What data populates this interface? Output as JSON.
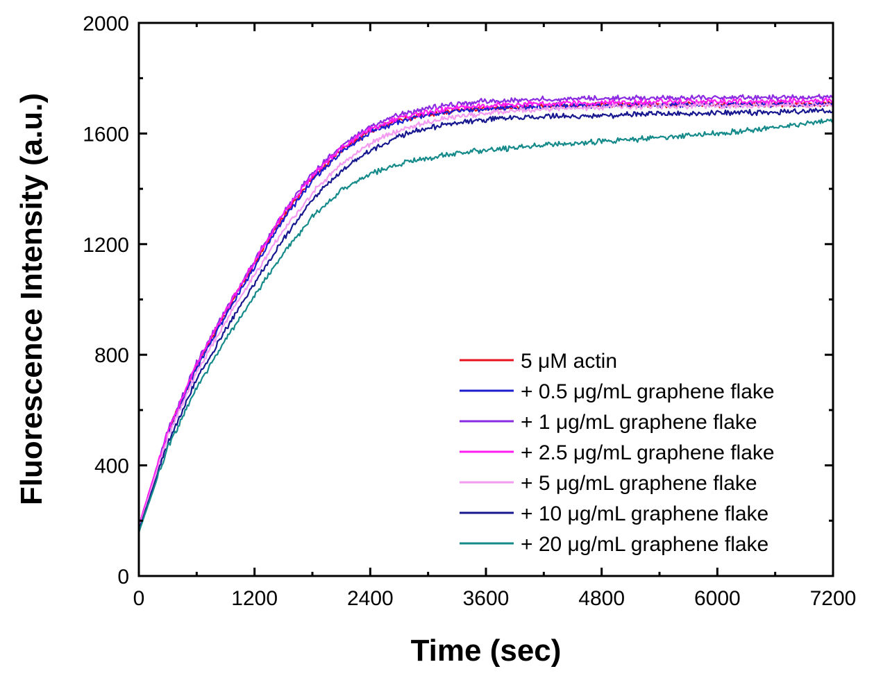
{
  "chart_data": {
    "type": "line",
    "title": "",
    "xlabel": "Time (sec)",
    "ylabel": "Fluorescence Intensity (a.u.)",
    "xlim": [
      0,
      7200
    ],
    "ylim": [
      0,
      2000
    ],
    "xticks": [
      "0",
      "1200",
      "2400",
      "3600",
      "4800",
      "6000",
      "7200"
    ],
    "yticks": [
      "0",
      "400",
      "800",
      "1200",
      "1600",
      "2000"
    ],
    "grid": false,
    "legend_position": "bottom-right",
    "x": [
      0,
      300,
      600,
      900,
      1200,
      1500,
      1800,
      2100,
      2400,
      2700,
      3000,
      3300,
      3600,
      3900,
      4200,
      4500,
      4800,
      5100,
      5400,
      5700,
      6000,
      6300,
      6600,
      6900,
      7200
    ],
    "series": [
      {
        "name": "5 μM actin",
        "color": "#e8121f",
        "values": [
          180,
          520,
          760,
          950,
          1130,
          1300,
          1440,
          1540,
          1610,
          1650,
          1670,
          1685,
          1692,
          1697,
          1700,
          1702,
          1703,
          1704,
          1704,
          1705,
          1705,
          1706,
          1706,
          1706,
          1707
        ]
      },
      {
        "name": "+ 0.5 μg/mL graphene flake",
        "color": "#1c1ccf",
        "values": [
          175,
          510,
          750,
          940,
          1120,
          1290,
          1430,
          1535,
          1605,
          1645,
          1668,
          1682,
          1690,
          1695,
          1698,
          1700,
          1702,
          1703,
          1704,
          1705,
          1705,
          1706,
          1706,
          1706,
          1707
        ]
      },
      {
        "name": "+ 1 μg/mL graphene flake",
        "color": "#8a2be2",
        "values": [
          180,
          525,
          770,
          960,
          1140,
          1315,
          1455,
          1555,
          1625,
          1668,
          1692,
          1708,
          1716,
          1720,
          1723,
          1725,
          1727,
          1728,
          1729,
          1730,
          1730,
          1731,
          1731,
          1732,
          1732
        ]
      },
      {
        "name": "+ 2.5 μg/mL graphene flake",
        "color": "#ff1cf0",
        "values": [
          182,
          522,
          768,
          958,
          1138,
          1312,
          1450,
          1548,
          1615,
          1655,
          1678,
          1692,
          1700,
          1705,
          1708,
          1710,
          1712,
          1713,
          1714,
          1715,
          1715,
          1716,
          1716,
          1717,
          1717
        ]
      },
      {
        "name": "+ 5 μg/mL graphene flake",
        "color": "#f49af0",
        "values": [
          170,
          505,
          735,
          920,
          1090,
          1250,
          1385,
          1490,
          1565,
          1612,
          1642,
          1662,
          1675,
          1683,
          1688,
          1692,
          1695,
          1697,
          1699,
          1700,
          1701,
          1702,
          1702,
          1703,
          1703
        ]
      },
      {
        "name": "+ 10 μg/mL graphene flake",
        "color": "#17178f",
        "values": [
          165,
          480,
          710,
          890,
          1060,
          1220,
          1360,
          1465,
          1540,
          1590,
          1620,
          1640,
          1650,
          1656,
          1660,
          1663,
          1666,
          1668,
          1670,
          1672,
          1674,
          1676,
          1678,
          1680,
          1682
        ]
      },
      {
        "name": "+ 20 μg/mL graphene flake",
        "color": "#158a8a",
        "values": [
          158,
          465,
          680,
          855,
          1015,
          1165,
          1300,
          1395,
          1455,
          1490,
          1512,
          1528,
          1540,
          1550,
          1558,
          1565,
          1572,
          1578,
          1585,
          1592,
          1600,
          1610,
          1622,
          1635,
          1650
        ]
      }
    ]
  }
}
